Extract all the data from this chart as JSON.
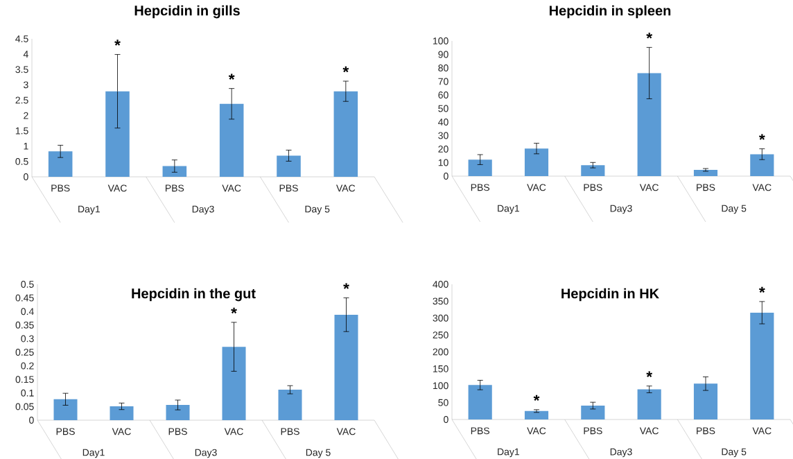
{
  "chart_data": [
    {
      "type": "bar",
      "title": "Hepcidin in gills",
      "categories": [
        "PBS",
        "VAC",
        "PBS",
        "VAC",
        "PBS",
        "VAC"
      ],
      "color": "#5b9bd5",
      "values": [
        0.83,
        2.79,
        0.35,
        2.38,
        0.69,
        2.79
      ],
      "errors": [
        0.2,
        1.2,
        0.2,
        0.5,
        0.18,
        0.33
      ],
      "value_labels": [
        null,
        "*",
        null,
        "*",
        null,
        "*"
      ],
      "ylim": [
        0,
        4.5
      ],
      "yticks": [
        0,
        0.5,
        1,
        1.5,
        2,
        2.5,
        3,
        3.5,
        4,
        4.5
      ],
      "annotations": [
        "Day1",
        "Day3",
        "Day 5"
      ]
    },
    {
      "type": "bar",
      "title": "Hepcidin in spleen",
      "categories": [
        "PBS",
        "VAC",
        "PBS",
        "VAC",
        "PBS",
        "VAC"
      ],
      "color": "#5b9bd5",
      "values": [
        12.2,
        20.4,
        8.1,
        76.2,
        4.6,
        16.2
      ],
      "errors": [
        3.7,
        3.9,
        2,
        19,
        1,
        4
      ],
      "value_labels": [
        null,
        null,
        null,
        "*",
        null,
        "*"
      ],
      "ylim": [
        0,
        100
      ],
      "yticks": [
        0,
        10,
        20,
        30,
        40,
        50,
        60,
        70,
        80,
        90,
        100
      ],
      "annotations": [
        "Day1",
        "Day3",
        "Day 5"
      ]
    },
    {
      "type": "bar",
      "title": "Hepcidin in the gut",
      "categories": [
        "PBS",
        "VAC",
        "PBS",
        "VAC",
        "PBS",
        "VAC"
      ],
      "color": "#5b9bd5",
      "values": [
        0.077,
        0.051,
        0.056,
        0.27,
        0.112,
        0.388
      ],
      "errors": [
        0.022,
        0.012,
        0.018,
        0.09,
        0.015,
        0.062
      ],
      "value_labels": [
        null,
        null,
        null,
        "*",
        null,
        "*"
      ],
      "ylim": [
        0,
        0.5
      ],
      "yticks": [
        0,
        0.05,
        0.1,
        0.15,
        0.2,
        0.25,
        0.3,
        0.35,
        0.4,
        0.45,
        0.5
      ],
      "annotations": [
        "Day1",
        "Day3",
        "Day 5"
      ]
    },
    {
      "type": "bar",
      "title": "Hepcidin in HK",
      "categories": [
        "PBS",
        "VAC",
        "PBS",
        "VAC",
        "PBS",
        "VAC"
      ],
      "color": "#5b9bd5",
      "values": [
        102,
        25,
        41,
        89,
        106,
        316
      ],
      "errors": [
        14,
        4,
        10,
        10,
        20,
        33
      ],
      "value_labels": [
        null,
        "*",
        null,
        "*",
        null,
        "*"
      ],
      "ylim": [
        0,
        400
      ],
      "yticks": [
        0,
        50,
        100,
        150,
        200,
        250,
        300,
        350,
        400
      ],
      "annotations": [
        "Day1",
        "Day3",
        "Day 5"
      ]
    }
  ]
}
